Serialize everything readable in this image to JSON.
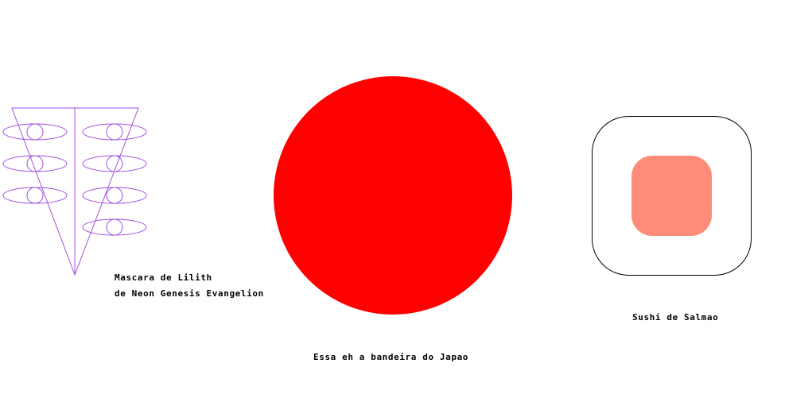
{
  "captions": {
    "lilith_line1": "Mascara de Lilith",
    "lilith_line2": "de Neon Genesis Evangelion",
    "sushi": "Sushi de Salmao",
    "japan_flag": "Essa eh a bandeira do Japao"
  },
  "colors": {
    "background": "#ffffff",
    "mask_stroke": "#a14fe0",
    "flag_disc": "#ff0000",
    "sushi_outline": "#000000",
    "sushi_salmon": "#ff8c78",
    "caption_text": "#000000"
  }
}
